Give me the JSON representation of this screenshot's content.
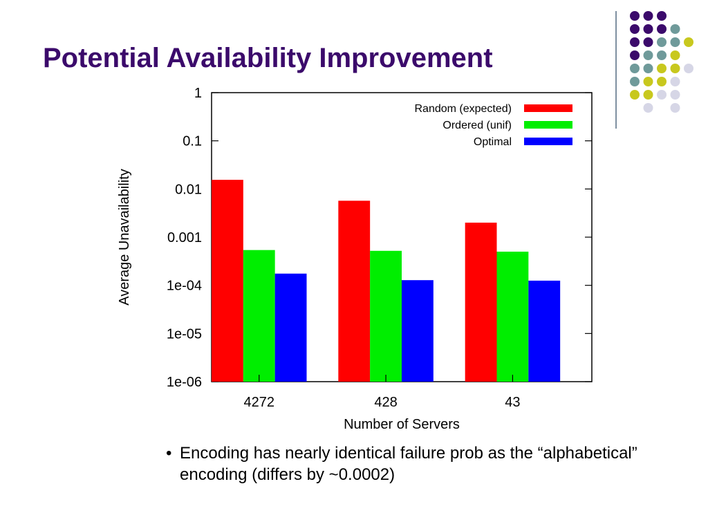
{
  "slide": {
    "title": "Potential Availability Improvement",
    "bullet_marker": "•",
    "bullet": "Encoding has nearly identical failure prob as the “alphabetical” encoding (differs by ~0.0002)",
    "accent_color": "#3b0a6b",
    "decor_palette": [
      "#3b0a6b",
      "#6f9a9a",
      "#c8c81e",
      "#d6d6e6"
    ]
  },
  "chart_data": {
    "type": "bar",
    "title": "",
    "xlabel": "Number of Servers",
    "ylabel": "Average Unavailability",
    "categories": [
      "4272",
      "428",
      "43"
    ],
    "yscale": "log",
    "ylim": [
      1e-06,
      1
    ],
    "yticks": [
      {
        "value": 1,
        "label": "1"
      },
      {
        "value": 0.1,
        "label": "0.1"
      },
      {
        "value": 0.01,
        "label": "0.01"
      },
      {
        "value": 0.001,
        "label": "0.001"
      },
      {
        "value": 0.0001,
        "label": "1e-04"
      },
      {
        "value": 1e-05,
        "label": "1e-05"
      },
      {
        "value": 1e-06,
        "label": "1e-06"
      }
    ],
    "grid": false,
    "legend_position": "top-right",
    "series": [
      {
        "name": "Random (expected)",
        "color": "#ff0000",
        "values": [
          0.0155,
          0.0057,
          0.002
        ]
      },
      {
        "name": "Ordered (unif)",
        "color": "#00ee00",
        "values": [
          0.00054,
          0.00052,
          0.0005
        ]
      },
      {
        "name": "Optimal",
        "color": "#0000ff",
        "values": [
          0.000175,
          0.000128,
          0.000125
        ]
      }
    ]
  }
}
